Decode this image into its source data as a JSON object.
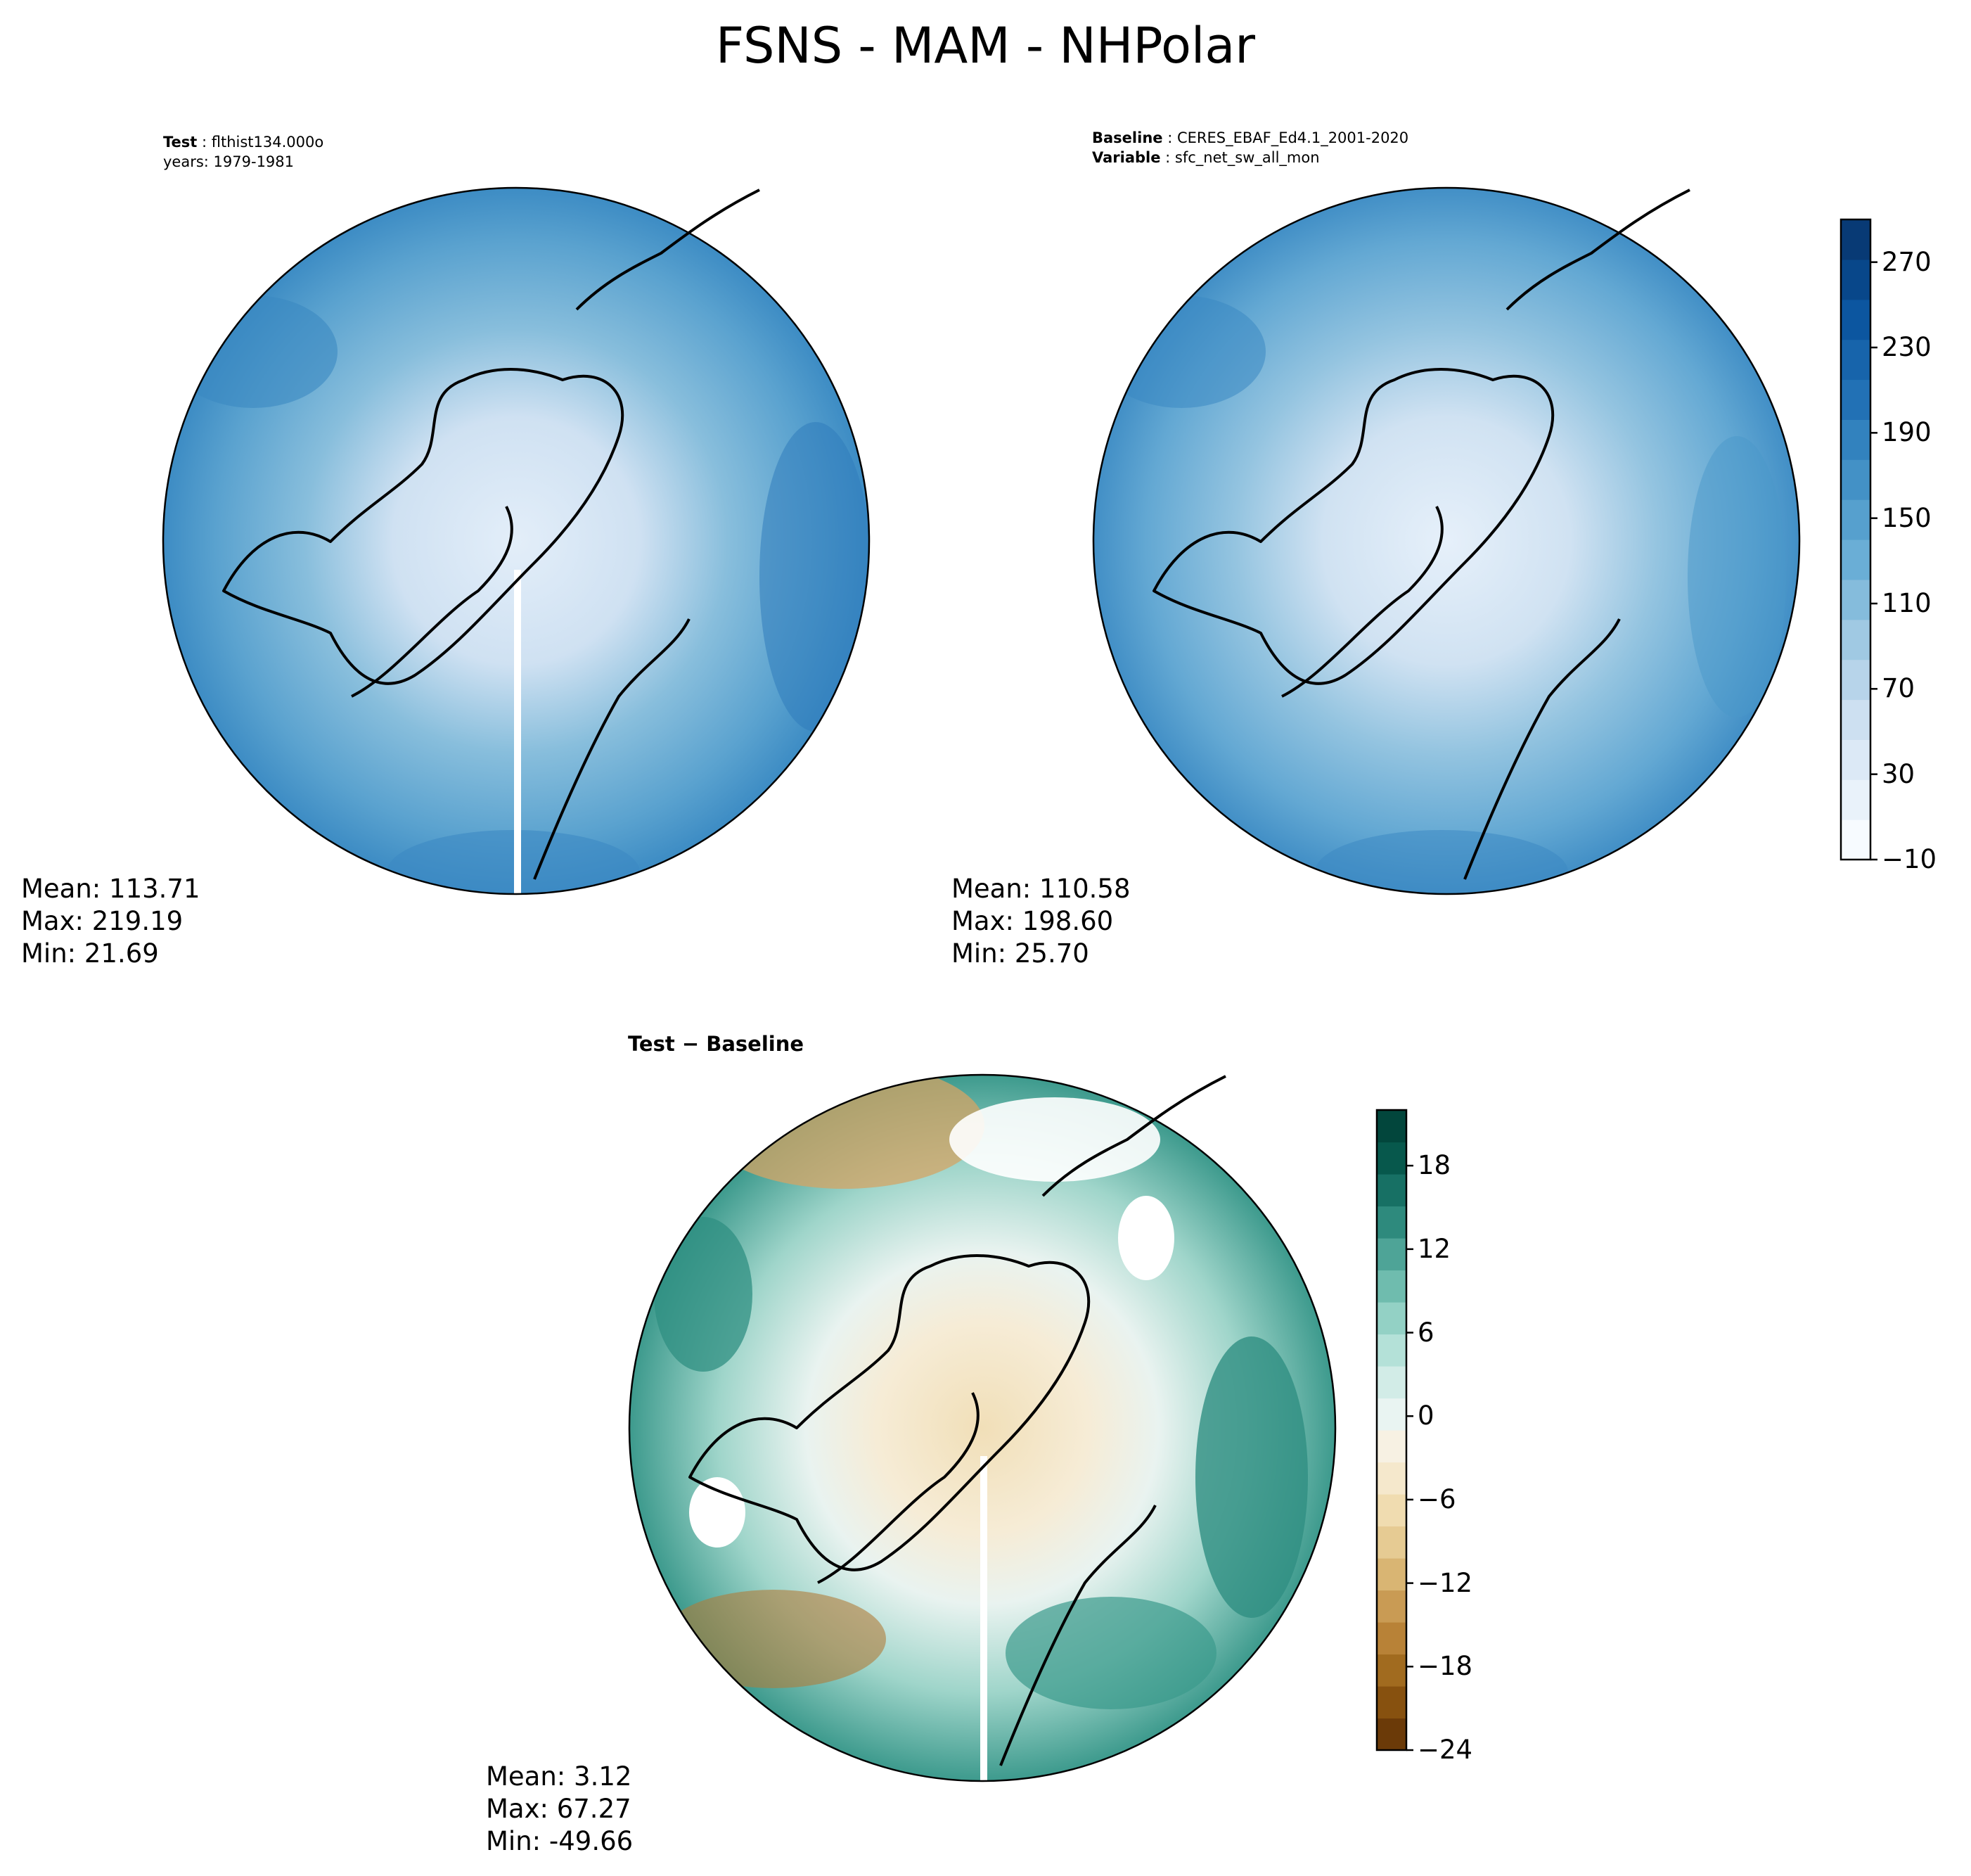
{
  "title": "FSNS - MAM - NHPolar",
  "panels": {
    "test": {
      "label_key": "Test",
      "label_value": "flthist134.000o",
      "line2": "years: 1979-1981",
      "stats": {
        "mean": "Mean: 113.71",
        "max": "Max: 219.19",
        "min": "Min: 21.69"
      }
    },
    "baseline": {
      "label_key": "Baseline",
      "label_value": "CERES_EBAF_Ed4.1_2001-2020",
      "line2_key": "Variable",
      "line2_value": "sfc_net_sw_all_mon",
      "stats": {
        "mean": "Mean: 110.58",
        "max": "Max: 198.60",
        "min": "Min: 25.70"
      }
    },
    "diff": {
      "label": "Test − Baseline",
      "stats": {
        "mean": "Mean:  3.12",
        "max": "Max: 67.27",
        "min": "Min: -49.66"
      }
    }
  },
  "colorbars": {
    "main": {
      "ticks": [
        "−10",
        "30",
        "70",
        "110",
        "150",
        "190",
        "230",
        "270"
      ],
      "colors": [
        "#f7fbff",
        "#e9f2fa",
        "#dce9f6",
        "#cde0f1",
        "#b7d4ea",
        "#a0c9e3",
        "#85bcdc",
        "#6aaed6",
        "#56a0ce",
        "#4391c6",
        "#3282be",
        "#2271b5",
        "#1764ab",
        "#0c56a0",
        "#08478a",
        "#083a75"
      ],
      "range": [
        -10,
        290
      ]
    },
    "diff": {
      "ticks": [
        "−24",
        "−18",
        "−12",
        "−6",
        "0",
        "6",
        "12",
        "18"
      ],
      "colors": [
        "#6b3a08",
        "#87510f",
        "#a16b1f",
        "#b88237",
        "#c99b54",
        "#d9b573",
        "#e6cb93",
        "#f0dcb0",
        "#f5e8cc",
        "#f7f1e3",
        "#e9f4f2",
        "#d2ece7",
        "#b4e1d8",
        "#93d1c5",
        "#6fbcae",
        "#4ea497",
        "#2e8a7d",
        "#177064",
        "#07584c",
        "#02463c"
      ],
      "range": [
        -24,
        22
      ]
    }
  }
}
